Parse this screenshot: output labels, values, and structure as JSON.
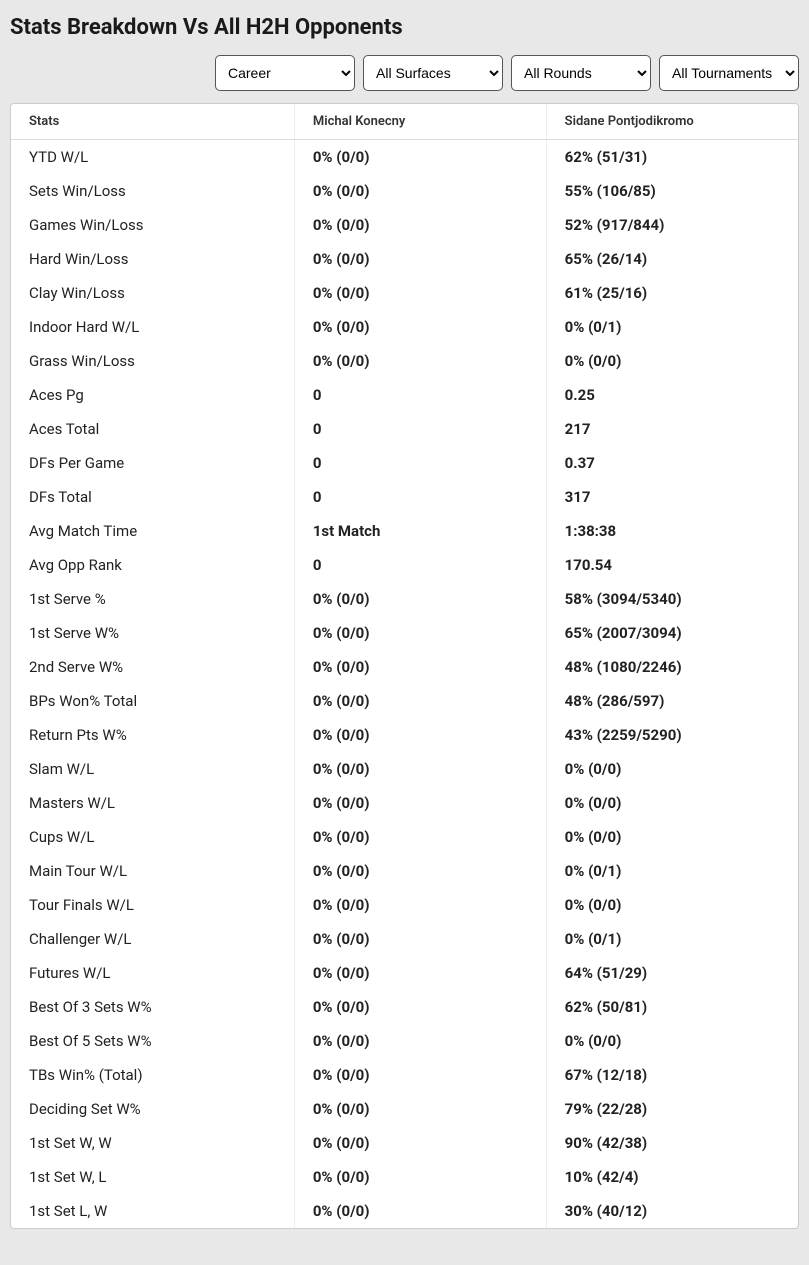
{
  "title": "Stats Breakdown Vs All H2H Opponents",
  "filters": {
    "period": "Career",
    "surface": "All Surfaces",
    "round": "All Rounds",
    "tournament": "All Tournaments"
  },
  "table": {
    "columns": [
      "Stats",
      "Michal Konecny",
      "Sidane Pontjodikromo"
    ],
    "rows": [
      {
        "stat": "YTD W/L",
        "p1": "0% (0/0)",
        "p2": "62% (51/31)"
      },
      {
        "stat": "Sets Win/Loss",
        "p1": "0% (0/0)",
        "p2": "55% (106/85)"
      },
      {
        "stat": "Games Win/Loss",
        "p1": "0% (0/0)",
        "p2": "52% (917/844)"
      },
      {
        "stat": "Hard Win/Loss",
        "p1": "0% (0/0)",
        "p2": "65% (26/14)"
      },
      {
        "stat": "Clay Win/Loss",
        "p1": "0% (0/0)",
        "p2": "61% (25/16)"
      },
      {
        "stat": "Indoor Hard W/L",
        "p1": "0% (0/0)",
        "p2": "0% (0/1)"
      },
      {
        "stat": "Grass Win/Loss",
        "p1": "0% (0/0)",
        "p2": "0% (0/0)"
      },
      {
        "stat": "Aces Pg",
        "p1": "0",
        "p2": "0.25"
      },
      {
        "stat": "Aces Total",
        "p1": "0",
        "p2": "217"
      },
      {
        "stat": "DFs Per Game",
        "p1": "0",
        "p2": "0.37"
      },
      {
        "stat": "DFs Total",
        "p1": "0",
        "p2": "317"
      },
      {
        "stat": "Avg Match Time",
        "p1": "1st Match",
        "p2": "1:38:38"
      },
      {
        "stat": "Avg Opp Rank",
        "p1": "0",
        "p2": "170.54"
      },
      {
        "stat": "1st Serve %",
        "p1": "0% (0/0)",
        "p2": "58% (3094/5340)"
      },
      {
        "stat": "1st Serve W%",
        "p1": "0% (0/0)",
        "p2": "65% (2007/3094)"
      },
      {
        "stat": "2nd Serve W%",
        "p1": "0% (0/0)",
        "p2": "48% (1080/2246)"
      },
      {
        "stat": "BPs Won% Total",
        "p1": "0% (0/0)",
        "p2": "48% (286/597)"
      },
      {
        "stat": "Return Pts W%",
        "p1": "0% (0/0)",
        "p2": "43% (2259/5290)"
      },
      {
        "stat": "Slam W/L",
        "p1": "0% (0/0)",
        "p2": "0% (0/0)"
      },
      {
        "stat": "Masters W/L",
        "p1": "0% (0/0)",
        "p2": "0% (0/0)"
      },
      {
        "stat": "Cups W/L",
        "p1": "0% (0/0)",
        "p2": "0% (0/0)"
      },
      {
        "stat": "Main Tour W/L",
        "p1": "0% (0/0)",
        "p2": "0% (0/1)"
      },
      {
        "stat": "Tour Finals W/L",
        "p1": "0% (0/0)",
        "p2": "0% (0/0)"
      },
      {
        "stat": "Challenger W/L",
        "p1": "0% (0/0)",
        "p2": "0% (0/1)"
      },
      {
        "stat": "Futures W/L",
        "p1": "0% (0/0)",
        "p2": "64% (51/29)"
      },
      {
        "stat": "Best Of 3 Sets W%",
        "p1": "0% (0/0)",
        "p2": "62% (50/81)"
      },
      {
        "stat": "Best Of 5 Sets W%",
        "p1": "0% (0/0)",
        "p2": "0% (0/0)"
      },
      {
        "stat": "TBs Win% (Total)",
        "p1": "0% (0/0)",
        "p2": "67% (12/18)"
      },
      {
        "stat": "Deciding Set W%",
        "p1": "0% (0/0)",
        "p2": "79% (22/28)"
      },
      {
        "stat": "1st Set W, W",
        "p1": "0% (0/0)",
        "p2": "90% (42/38)"
      },
      {
        "stat": "1st Set W, L",
        "p1": "0% (0/0)",
        "p2": "10% (42/4)"
      },
      {
        "stat": "1st Set L, W",
        "p1": "0% (0/0)",
        "p2": "30% (40/12)"
      }
    ]
  },
  "style": {
    "background_color": "#e8e8e8",
    "table_border_color": "#cccccc",
    "header_border_color": "#dddddd",
    "cell_divider_color": "#eeeeee",
    "text_color": "#222222",
    "title_fontsize": 22,
    "header_fontsize": 13,
    "cell_fontsize": 15
  }
}
